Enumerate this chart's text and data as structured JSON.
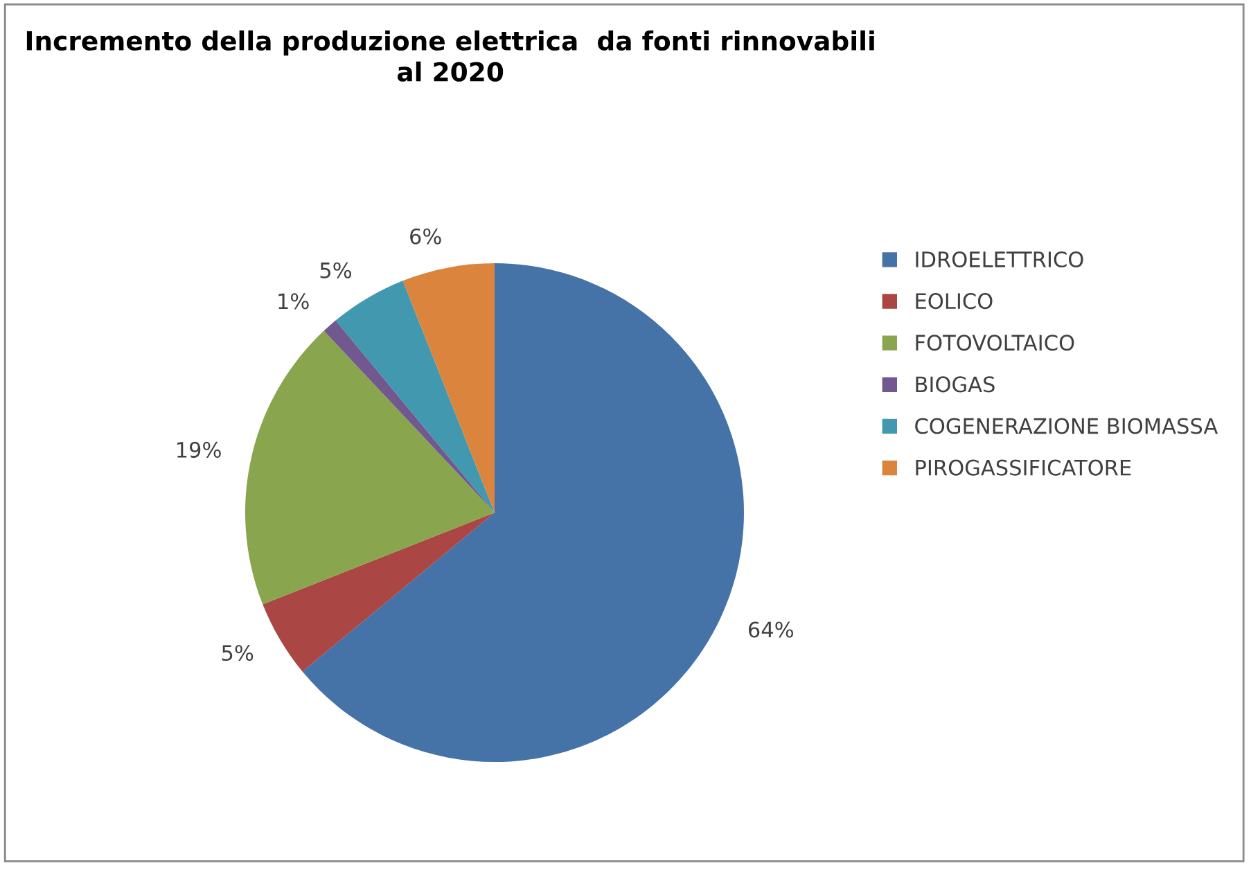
{
  "chart_data": {
    "type": "pie",
    "title": "Incremento della produzione elettrica  da fonti rinnovabili\nal 2020",
    "categories": [
      "IDROELETTRICO",
      "EOLICO",
      "FOTOVOLTAICO",
      "BIOGAS",
      "COGENERAZIONE BIOMASSA",
      "PIROGASSIFICATORE"
    ],
    "values": [
      64,
      5,
      19,
      1,
      5,
      6
    ],
    "value_labels": [
      "64%",
      "5%",
      "19%",
      "1%",
      "5%",
      "6%"
    ],
    "colors": [
      "#4572a7",
      "#aa4643",
      "#89a54e",
      "#71588f",
      "#4198af",
      "#db843d"
    ],
    "legend": "right"
  }
}
